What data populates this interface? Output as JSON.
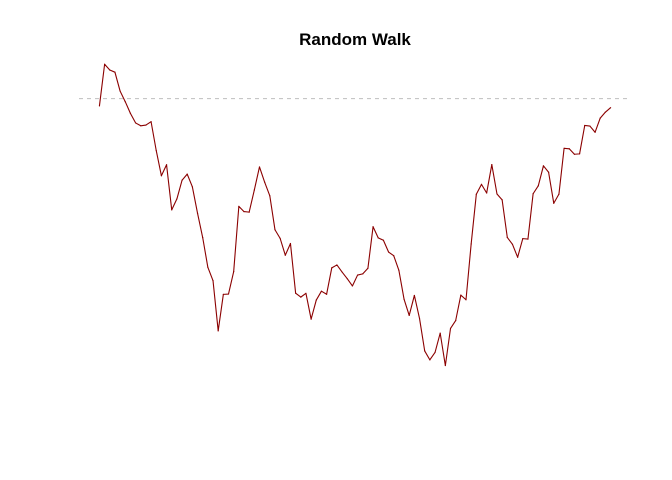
{
  "chart_data": {
    "type": "line",
    "title": "Random Walk",
    "xlabel": "",
    "ylabel": "",
    "axes_visible": false,
    "grid": false,
    "x": [
      1,
      2,
      3,
      4,
      5,
      6,
      7,
      8,
      9,
      10,
      11,
      12,
      13,
      14,
      15,
      16,
      17,
      18,
      19,
      20,
      21,
      22,
      23,
      24,
      25,
      26,
      27,
      28,
      29,
      30,
      31,
      32,
      33,
      34,
      35,
      36,
      37,
      38,
      39,
      40,
      41,
      42,
      43,
      44,
      45,
      46,
      47,
      48,
      49,
      50,
      51,
      52,
      53,
      54,
      55,
      56,
      57,
      58,
      59,
      60,
      61,
      62,
      63,
      64,
      65,
      66,
      67,
      68,
      69,
      70,
      71,
      72,
      73,
      74,
      75,
      76,
      77,
      78,
      79,
      80,
      81,
      82,
      83,
      84,
      85,
      86,
      87,
      88,
      89,
      90,
      91,
      92,
      93,
      94,
      95,
      96,
      97,
      98,
      99,
      100
    ],
    "y": [
      -1.12,
      5.25,
      4.38,
      4.04,
      1.15,
      -0.48,
      -2.27,
      -3.73,
      -4.17,
      -4.06,
      -3.54,
      -7.96,
      -11.82,
      -10.14,
      -17.04,
      -15.37,
      -12.51,
      -11.57,
      -13.52,
      -17.56,
      -21.29,
      -25.85,
      -27.89,
      -35.57,
      -29.99,
      -29.94,
      -26.5,
      -16.51,
      -17.31,
      -17.39,
      -14.0,
      -10.47,
      -12.8,
      -14.9,
      -20.09,
      -21.41,
      -23.99,
      -22.2,
      -29.81,
      -30.41,
      -29.83,
      -33.78,
      -30.86,
      -29.5,
      -29.97,
      -25.93,
      -25.48,
      -26.57,
      -27.59,
      -28.7,
      -27.03,
      -26.85,
      -25.99,
      -19.63,
      -21.34,
      -21.7,
      -23.5,
      -24.07,
      -26.3,
      -30.72,
      -33.21,
      -30.15,
      -33.68,
      -38.65,
      -40.02,
      -38.89,
      -35.93,
      -40.89,
      -35.21,
      -34.0,
      -30.1,
      -30.81,
      -22.27,
      -14.66,
      -13.14,
      -14.46,
      -10.12,
      -14.61,
      -15.52,
      -21.27,
      -22.32,
      -24.3,
      -21.45,
      -21.52,
      -14.58,
      -13.37,
      -10.3,
      -11.29,
      -16.03,
      -14.64,
      -7.62,
      -7.69,
      -8.53,
      -8.47,
      -4.12,
      -4.21,
      -5.16,
      -2.99,
      -2.08,
      -1.4
    ],
    "reference_line": {
      "y": 0,
      "style": "dashed",
      "color": "#bebebe"
    },
    "series": [
      {
        "color": "#8b0000"
      }
    ],
    "xlim": [
      -2.96,
      103.96
    ],
    "ylim": [
      -45.4,
      5.6
    ]
  }
}
